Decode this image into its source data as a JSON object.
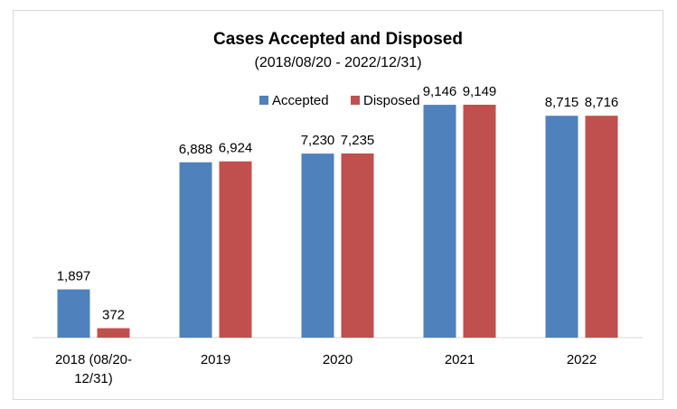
{
  "chart_data": {
    "type": "bar",
    "title": "Cases Accepted and Disposed",
    "subtitle": "(2018/08/20 - 2022/12/31)",
    "categories": [
      "2018 (08/20-12/31)",
      "2019",
      "2020",
      "2021",
      "2022"
    ],
    "category_lines": [
      [
        "2018 (08/20-",
        "12/31)"
      ],
      [
        "2019"
      ],
      [
        "2020"
      ],
      [
        "2021"
      ],
      [
        "2022"
      ]
    ],
    "series": [
      {
        "name": "Accepted",
        "color": "#4f81bd",
        "values": [
          1897,
          6888,
          7230,
          9146,
          8715
        ],
        "labels": [
          "1,897",
          "6,888",
          "7,230",
          "9,146",
          "8,715"
        ]
      },
      {
        "name": "Disposed",
        "color": "#c0504d",
        "values": [
          372,
          6924,
          7235,
          9149,
          8716
        ],
        "labels": [
          "372",
          "6,924",
          "7,235",
          "9,149",
          "8,716"
        ]
      }
    ],
    "ylim": [
      0,
      10000
    ],
    "grid": false,
    "legend_position": "top"
  }
}
